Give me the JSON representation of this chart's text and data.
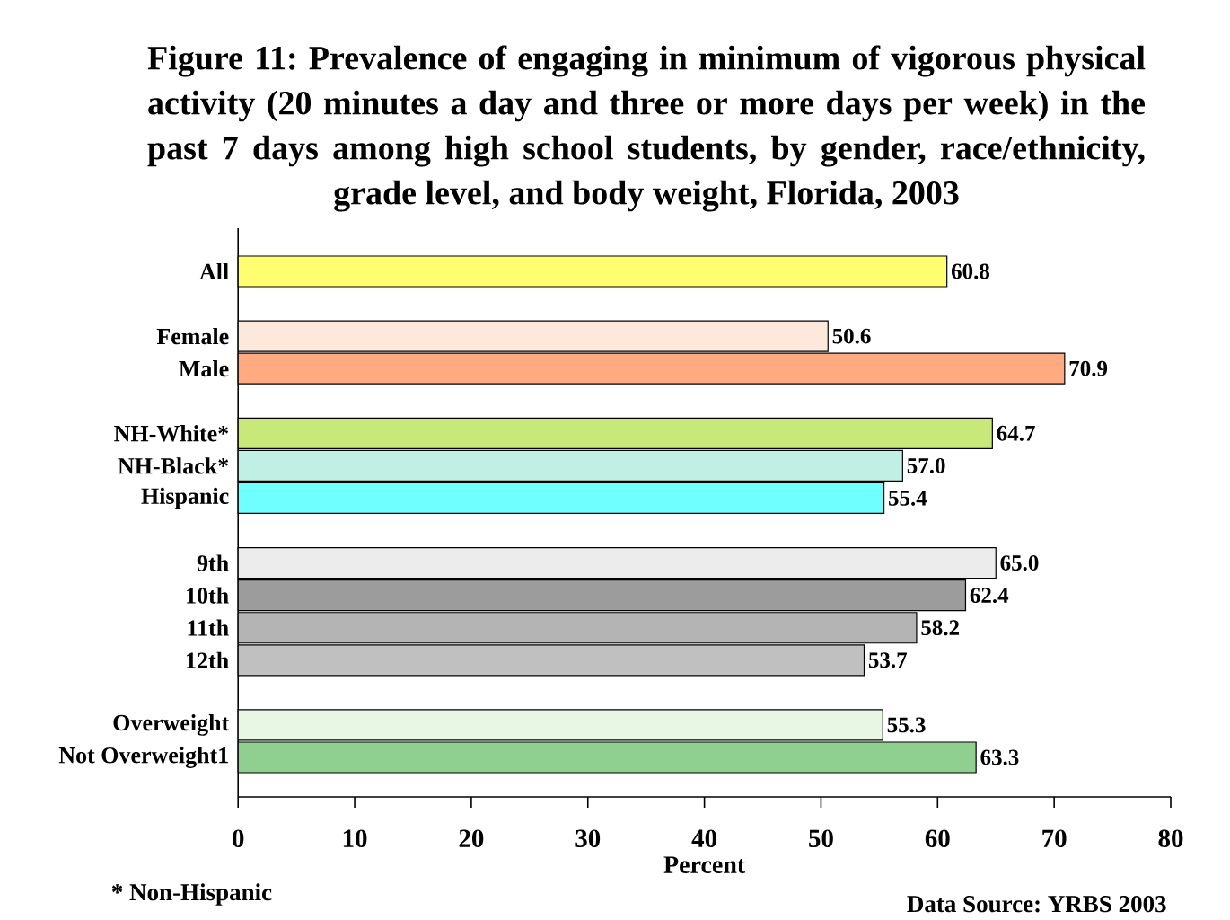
{
  "chart_data": {
    "type": "bar",
    "orientation": "horizontal",
    "title": "Figure 11: Prevalence of engaging in minimum of vigorous physical activity (20 minutes a day and three or more days per week) in the past 7 days among high school students, by gender, race/ethnicity, grade level, and body weight, Florida, 2003",
    "categories": [
      "All",
      null,
      "Female",
      "Male",
      null,
      "NH-White*",
      "NH-Black*",
      "Hispanic",
      null,
      "9th",
      "10th",
      "11th",
      "12th",
      null,
      "Overweight",
      "Not Overweight1"
    ],
    "values": [
      60.8,
      null,
      50.6,
      70.9,
      null,
      64.7,
      57.0,
      55.4,
      null,
      65.0,
      62.4,
      58.2,
      53.7,
      null,
      55.3,
      63.3
    ],
    "value_labels": [
      "60.8",
      null,
      "50.6",
      "70.9",
      null,
      "64.7",
      "57.0",
      "55.4",
      null,
      "65.0",
      "62.4",
      "58.2",
      "53.7",
      null,
      "55.3",
      "63.3"
    ],
    "colors": [
      "#ffff70",
      null,
      "#fde8dc",
      "#ffaa80",
      null,
      "#c8e87a",
      "#c0f0e4",
      "#70ffff",
      null,
      "#ececec",
      "#9c9c9c",
      "#b4b4b4",
      "#c0c0c0",
      null,
      "#e8f6e4",
      "#8fcf8f"
    ],
    "xlabel": "Percent",
    "xlim": [
      0,
      80
    ],
    "xticks": [
      0,
      10,
      20,
      30,
      40,
      50,
      60,
      70,
      80
    ],
    "annotations": [
      "* Non-Hispanic",
      "Data Source: YRBS 2003"
    ]
  }
}
